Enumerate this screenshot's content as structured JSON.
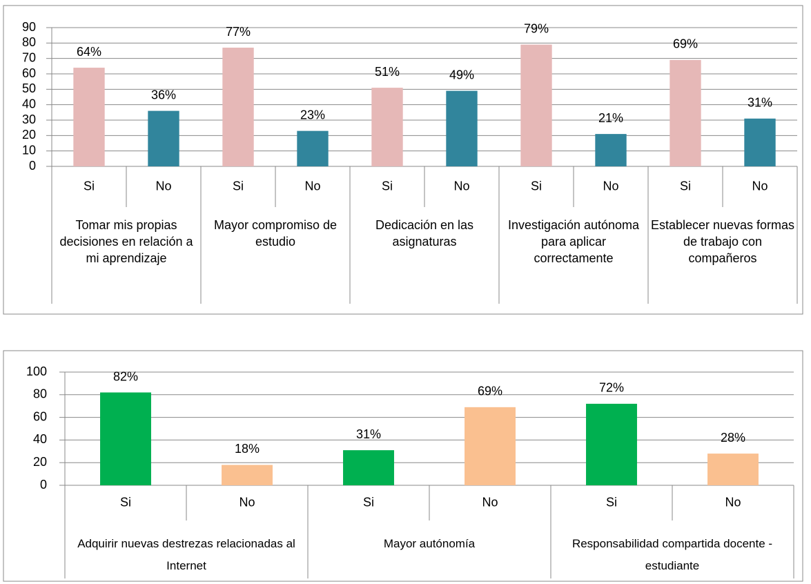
{
  "chart_data": [
    {
      "type": "bar",
      "categories": [
        "Si",
        "No",
        "Si",
        "No",
        "Si",
        "No",
        "Si",
        "No",
        "Si",
        "No"
      ],
      "groups": [
        "Tomar mis propias decisiones en relación a mi aprendizaje",
        "Mayor compromiso de estudio",
        "Dedicación en las asignaturas",
        "Investigación autónoma para aplicar correctamente",
        "Establecer nuevas formas de trabajo con compañeros"
      ],
      "values": [
        64,
        36,
        77,
        23,
        51,
        49,
        79,
        21,
        69,
        31
      ],
      "value_labels": [
        "64%",
        "36%",
        "77%",
        "23%",
        "51%",
        "49%",
        "79%",
        "21%",
        "69%",
        "31%"
      ],
      "colors": [
        "#e6b8b7",
        "#31859c",
        "#e6b8b7",
        "#31859c",
        "#e6b8b7",
        "#31859c",
        "#e6b8b7",
        "#31859c",
        "#e6b8b7",
        "#31859c"
      ],
      "ylim": [
        0,
        90
      ],
      "yticks": [
        0,
        10,
        20,
        30,
        40,
        50,
        60,
        70,
        80,
        90
      ],
      "grid": true
    },
    {
      "type": "bar",
      "categories": [
        "Si",
        "No",
        "Si",
        "No",
        "Si",
        "No"
      ],
      "groups": [
        "Adquirir nuevas destrezas relacionadas al Internet",
        "Mayor autónomía",
        "Responsabilidad compartida docente - estudiante"
      ],
      "values": [
        82,
        18,
        31,
        69,
        72,
        28
      ],
      "value_labels": [
        "82%",
        "18%",
        "31%",
        "69%",
        "72%",
        "28%"
      ],
      "colors": [
        "#00b050",
        "#fac090",
        "#00b050",
        "#fac090",
        "#00b050",
        "#fac090"
      ],
      "ylim": [
        0,
        100
      ],
      "yticks": [
        0,
        20,
        40,
        60,
        80,
        100
      ],
      "grid": true
    }
  ]
}
